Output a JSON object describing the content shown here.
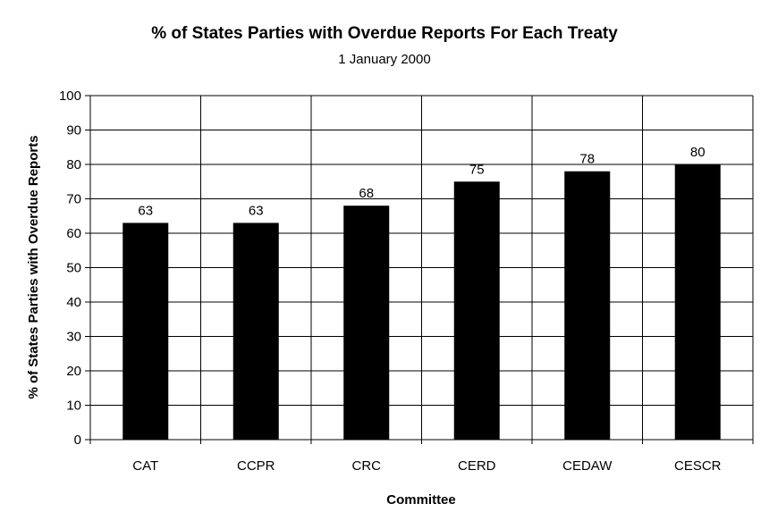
{
  "chart_data": {
    "type": "bar",
    "title": "% of States Parties with Overdue Reports For Each Treaty",
    "subtitle": "1 January 2000",
    "xlabel": "Committee",
    "ylabel": "% of States Parties with Overdue Reports",
    "categories": [
      "CAT",
      "CCPR",
      "CRC",
      "CERD",
      "CEDAW",
      "CESCR"
    ],
    "values": [
      63,
      63,
      68,
      75,
      78,
      80
    ],
    "data_labels": [
      "63",
      "63",
      "68",
      "75",
      "78",
      "80"
    ],
    "ylim": [
      0,
      100
    ],
    "yticks": [
      0,
      10,
      20,
      30,
      40,
      50,
      60,
      70,
      80,
      90,
      100
    ],
    "grid": true,
    "bar_color": "#000000",
    "legend": "none"
  }
}
